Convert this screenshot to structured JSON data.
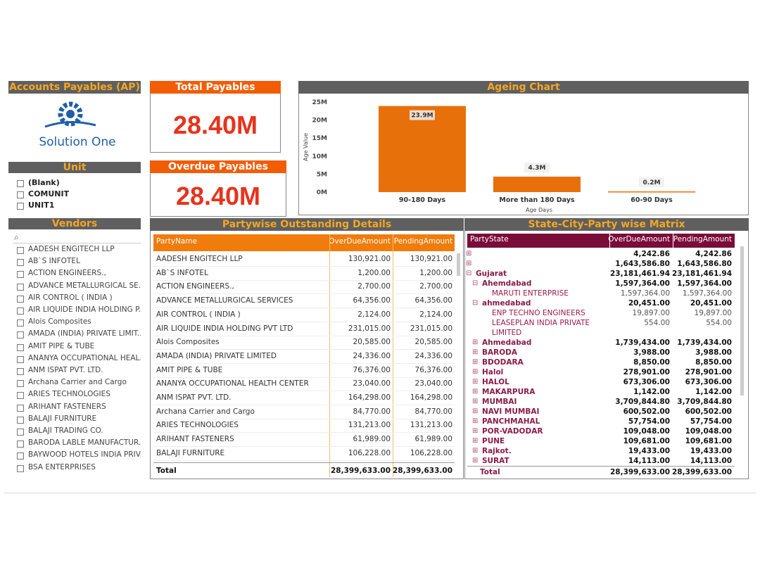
{
  "header": {
    "title": "Accounts Payables (AP)",
    "logo_text": "Solution One"
  },
  "cards": [
    {
      "title": "Total Payables",
      "value": "28.40M"
    },
    {
      "title": "Overdue Payables",
      "value": "28.40M"
    }
  ],
  "unit_slicer": {
    "title": "Unit",
    "items": [
      "(Blank)",
      "COMUNIT",
      "UNIT1"
    ]
  },
  "vendor_slicer": {
    "title": "Vendors",
    "items": [
      "AADESH ENGITECH LLP",
      "AB`S INFOTEL",
      "ACTION ENGINEERS.,",
      "ADVANCE METALLURGICAL SE...",
      "AIR CONTROL ( INDIA )",
      "AIR LIQUIDE INDIA HOLDING P...",
      "Alois Composites",
      "AMADA (INDIA) PRIVATE LIMIT...",
      "AMIT PIPE & TUBE",
      "ANANYA OCCUPATIONAL HEAL...",
      "ANM ISPAT PVT. LTD.",
      "Archana Carrier and Cargo",
      "ARIES TECHNOLOGIES",
      "ARIHANT FASTENERS",
      "BALAJI FURNITURE",
      "BALAJI TRADING CO.",
      "BARODA LABLE MANUFACTUR...",
      "BAYWOOD HOTELS INDIA PRIV...",
      "BSA ENTERPRISES"
    ]
  },
  "ageing_chart": {
    "type": "bar",
    "title": "Ageing Chart",
    "y_label": "Age Value",
    "x_label": "Age Days",
    "categories": [
      "90-180 Days",
      "More than 180 Days",
      "60-90 Days"
    ],
    "values": [
      23.9,
      4.3,
      0.2
    ],
    "value_labels": [
      "23.9M",
      "4.3M",
      "0.2M"
    ],
    "color": "#e8700a",
    "ylim": [
      0,
      25
    ],
    "yticks": [
      {
        "value": 0,
        "label": "0M"
      },
      {
        "value": 5,
        "label": "5M"
      },
      {
        "value": 10,
        "label": "10M"
      },
      {
        "value": 15,
        "label": "15M"
      },
      {
        "value": 20,
        "label": "20M"
      },
      {
        "value": 25,
        "label": "25M"
      }
    ]
  },
  "table": {
    "title": "Partywise Outstanding Details",
    "columns": [
      "PartyName",
      "OverDueAmount",
      "PendingAmount"
    ],
    "rows": [
      [
        "AADESH ENGITECH LLP",
        "130,921.00",
        "130,921.00"
      ],
      [
        "AB`S INFOTEL",
        "1,200.00",
        "1,200.00"
      ],
      [
        "ACTION ENGINEERS.,",
        "2,700.00",
        "2,700.00"
      ],
      [
        "ADVANCE METALLURGICAL SERVICES",
        "64,356.00",
        "64,356.00"
      ],
      [
        "AIR CONTROL ( INDIA )",
        "2,124.00",
        "2,124.00"
      ],
      [
        "AIR LIQUIDE INDIA HOLDING PVT LTD",
        "231,015.00",
        "231,015.00"
      ],
      [
        "Alois Composites",
        "20,585.00",
        "20,585.00"
      ],
      [
        "AMADA (INDIA) PRIVATE LIMITED",
        "24,336.00",
        "24,336.00"
      ],
      [
        "AMIT PIPE & TUBE",
        "76,376.00",
        "76,376.00"
      ],
      [
        "ANANYA OCCUPATIONAL HEALTH CENTER",
        "23,040.00",
        "23,040.00"
      ],
      [
        "ANM ISPAT PVT. LTD.",
        "164,298.00",
        "164,298.00"
      ],
      [
        "Archana Carrier and Cargo",
        "84,770.00",
        "84,770.00"
      ],
      [
        "ARIES TECHNOLOGIES",
        "131,213.00",
        "131,213.00"
      ],
      [
        "ARIHANT FASTENERS",
        "61,989.00",
        "61,989.00"
      ],
      [
        "BALAJI FURNITURE",
        "106,228.00",
        "106,228.00"
      ]
    ],
    "total": [
      "Total",
      "28,399,633.00",
      "28,399,633.00"
    ]
  },
  "matrix": {
    "title": "State-City-Party wise Matrix",
    "columns": [
      "PartyState",
      "OverDueAmount",
      "PendingAmount"
    ],
    "states": [
      {
        "name": null,
        "overdue": "4,242.86",
        "pending": "4,242.86"
      },
      {
        "name": null,
        "overdue": "1,643,586.80",
        "pending": "1,643,586.80"
      },
      {
        "name": "Gujarat",
        "overdue": "23,181,461.94",
        "pending": "23,181,461.94",
        "cities": [
          {
            "name": "Ahemdabad",
            "overdue": "1,597,364.00",
            "pending": "1,597,364.00",
            "parties": [
              {
                "name": "MARUTI ENTERPRISE",
                "overdue": "1,597,364.00",
                "pending": "1,597,364.00"
              }
            ]
          },
          {
            "name": "ahmedabad",
            "overdue": "20,451.00",
            "pending": "20,451.00",
            "parties": [
              {
                "name": "ENP TECHNO ENGINEERS",
                "overdue": "19,897.00",
                "pending": "19,897.00"
              },
              {
                "name": "LEASEPLAN INDIA PRIVATE LIMITED",
                "overdue": "554.00",
                "pending": "554.00"
              }
            ]
          },
          {
            "name": "Ahmedabad",
            "overdue": "1,739,434.00",
            "pending": "1,739,434.00"
          },
          {
            "name": "BARODA",
            "overdue": "3,988.00",
            "pending": "3,988.00"
          },
          {
            "name": "BDODARA",
            "overdue": "8,850.00",
            "pending": "8,850.00"
          },
          {
            "name": "Halol",
            "overdue": "278,901.00",
            "pending": "278,901.00"
          },
          {
            "name": "HALOL",
            "overdue": "673,306.00",
            "pending": "673,306.00"
          },
          {
            "name": "MAKARPURA",
            "overdue": "1,142.00",
            "pending": "1,142.00"
          },
          {
            "name": "MUMBAI",
            "overdue": "3,709,844.80",
            "pending": "3,709,844.80"
          },
          {
            "name": "NAVI MUMBAI",
            "overdue": "600,502.00",
            "pending": "600,502.00"
          },
          {
            "name": "PANCHMAHAL",
            "overdue": "57,754.00",
            "pending": "57,754.00"
          },
          {
            "name": "POR-VADODAR",
            "overdue": "109,048.00",
            "pending": "109,048.00"
          },
          {
            "name": "PUNE",
            "overdue": "109,681.00",
            "pending": "109,681.00"
          },
          {
            "name": "Rajkot.",
            "overdue": "19,433.00",
            "pending": "19,433.00"
          },
          {
            "name": "SURAT",
            "overdue": "14,113.00",
            "pending": "14,113.00"
          }
        ]
      }
    ],
    "total": [
      "Total",
      "28,399,633.00",
      "28,399,633.00"
    ]
  }
}
